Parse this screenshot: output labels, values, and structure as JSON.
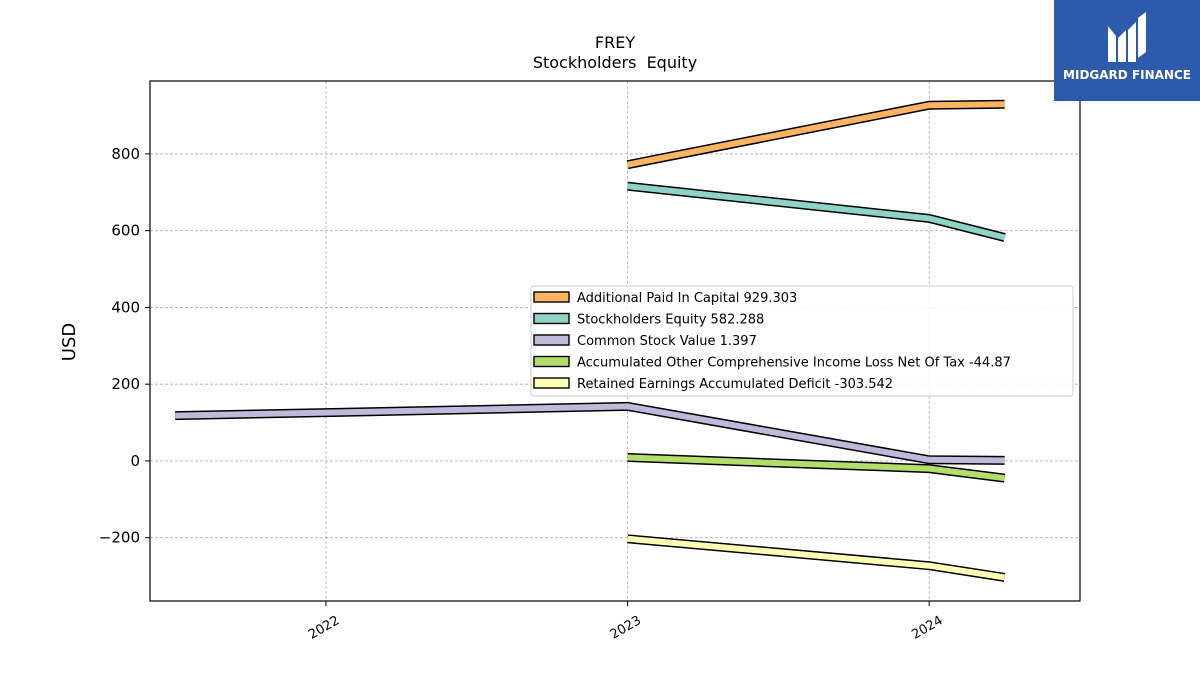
{
  "chart_data": {
    "type": "line",
    "title": "FREY",
    "subtitle": "Stockholders  Equity",
    "xlabel": "",
    "ylabel": "USD",
    "x_ticks": [
      "2022",
      "2023",
      "2024"
    ],
    "y_ticks": [
      "−200",
      "0",
      "200",
      "400",
      "600",
      "800"
    ],
    "ylim": [
      -365,
      990
    ],
    "xlim": [
      "2021-06",
      "2024-07"
    ],
    "grid": true,
    "legend_position": "center-right",
    "series": [
      {
        "name": "Additional Paid In Capital  929.303",
        "color": "#fdb462",
        "points": [
          [
            "2023-01",
            772
          ],
          [
            "2024-01",
            927
          ],
          [
            "2024-04",
            929.303
          ]
        ]
      },
      {
        "name": "Stockholders Equity  582.288",
        "color": "#8dd3c7",
        "points": [
          [
            "2023-01",
            716
          ],
          [
            "2024-01",
            632
          ],
          [
            "2024-04",
            582.288
          ]
        ]
      },
      {
        "name": "Common Stock Value  1.397",
        "color": "#bebada",
        "points": [
          [
            "2021-07",
            118
          ],
          [
            "2022-01",
            126
          ],
          [
            "2023-01",
            142
          ],
          [
            "2024-01",
            3
          ],
          [
            "2024-04",
            1.397
          ]
        ]
      },
      {
        "name": "Accumulated Other Comprehensive Income Loss Net Of Tax  -44.87",
        "color": "#b3de69",
        "points": [
          [
            "2023-01",
            9
          ],
          [
            "2024-01",
            -20
          ],
          [
            "2024-04",
            -44.87
          ]
        ]
      },
      {
        "name": "Retained Earnings Accumulated Deficit  -303.542",
        "color": "#ffffb3",
        "points": [
          [
            "2023-01",
            -203
          ],
          [
            "2024-01",
            -273
          ],
          [
            "2024-04",
            -303.542
          ]
        ]
      }
    ]
  },
  "logo": {
    "text": "MIDGARD FINANCE"
  }
}
